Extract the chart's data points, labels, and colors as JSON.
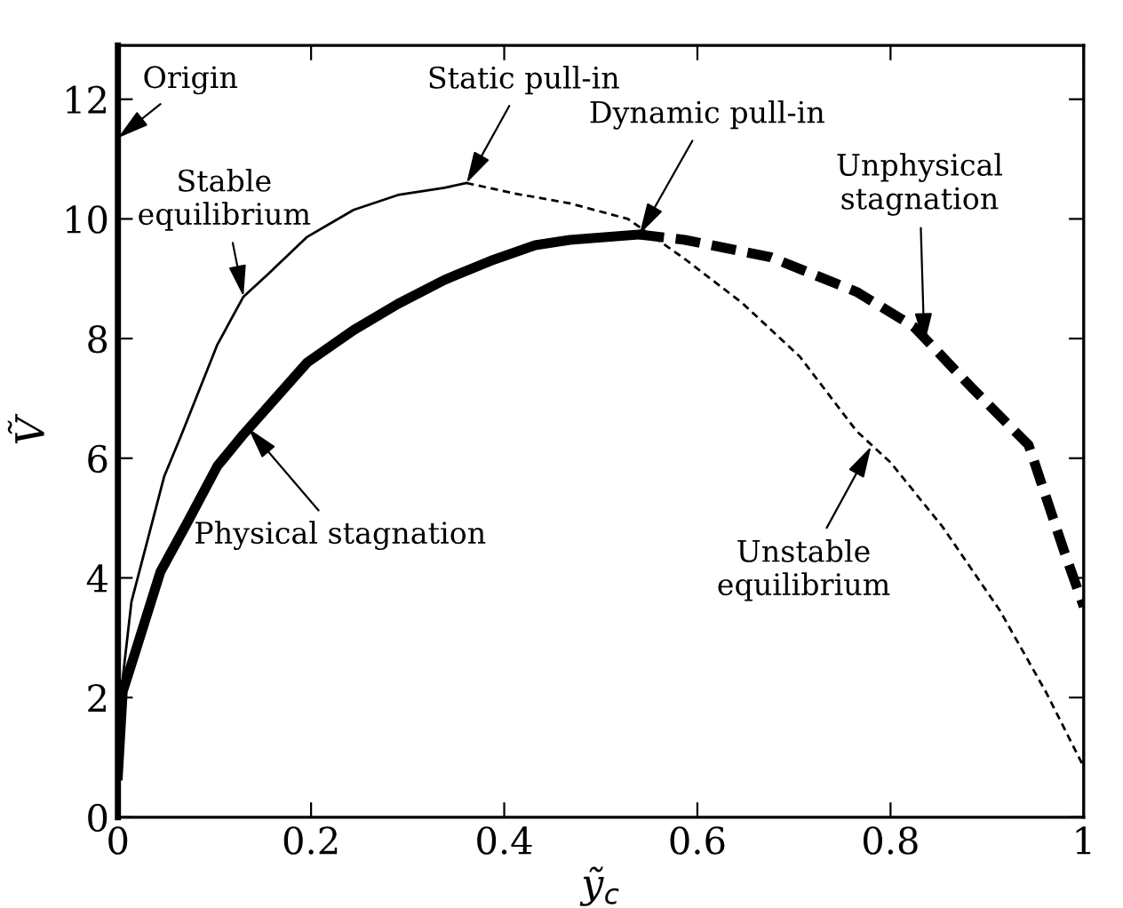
{
  "chart_data": {
    "type": "line",
    "xlabel": "ỹ$_{c}$",
    "ylabel": "Ṽ",
    "xlim": [
      0,
      1
    ],
    "ylim": [
      0,
      12.9
    ],
    "xticks": [
      0,
      0.2,
      0.4,
      0.6,
      0.8,
      1
    ],
    "yticks": [
      0,
      2,
      4,
      6,
      8,
      10,
      12
    ],
    "grid": false,
    "legend": false,
    "marker": "none",
    "series": [
      {
        "color": "#000000",
        "line_style": "solid",
        "x": [
          0.002,
          0.014,
          0.048,
          0.066,
          0.103,
          0.13,
          0.155,
          0.196,
          0.244,
          0.29,
          0.338,
          0.361
        ],
        "values": [
          1.9,
          3.6,
          5.7,
          6.4,
          7.9,
          8.7,
          9.07,
          9.7,
          10.15,
          10.4,
          10.52,
          10.6
        ]
      },
      {
        "color": "#000000",
        "line_style": "dashed",
        "x": [
          0.361,
          0.409,
          0.468,
          0.528,
          0.587,
          0.646,
          0.706,
          0.765,
          0.8,
          0.854,
          0.913,
          0.961,
          1.0
        ],
        "values": [
          10.6,
          10.43,
          10.26,
          10.0,
          9.33,
          8.6,
          7.7,
          6.45,
          5.93,
          4.85,
          3.46,
          2.09,
          0.84
        ]
      },
      {
        "color": "#000000",
        "line_style": "solid",
        "x": [
          0,
          0.005,
          0.018,
          0.044,
          0.071,
          0.103,
          0.13,
          0.196,
          0.244,
          0.29,
          0.338,
          0.386,
          0.432,
          0.468,
          0.54
        ],
        "values": [
          0.7,
          2.1,
          2.76,
          4.1,
          4.9,
          5.87,
          6.4,
          7.6,
          8.14,
          8.58,
          8.98,
          9.3,
          9.56,
          9.65,
          9.74
        ]
      },
      {
        "color": "#000000",
        "line_style": "dashed",
        "x": [
          0.54,
          0.587,
          0.676,
          0.765,
          0.824,
          0.884,
          0.943,
          0.979,
          1.0
        ],
        "values": [
          9.74,
          9.65,
          9.36,
          8.78,
          8.2,
          7.18,
          6.22,
          4.48,
          3.52
        ]
      }
    ],
    "annotations": [
      "Origin",
      {
        "text": "Stable\nequilibrium",
        "x": 0.13,
        "y": 8.7
      },
      {
        "text": "Static pull-in",
        "x": 0.361,
        "y": 10.6
      },
      {
        "text": "Dynamic pull-in",
        "x": 0.54,
        "y": 9.74
      },
      {
        "text": "Unphysical\nstagnation",
        "x": 0.835,
        "y": 7.9
      },
      {
        "text": "Physical stagnation",
        "x": 0.135,
        "y": 6.5
      },
      {
        "text": "Unstable\nequilibrium",
        "x": 0.78,
        "y": 6.2
      }
    ]
  }
}
